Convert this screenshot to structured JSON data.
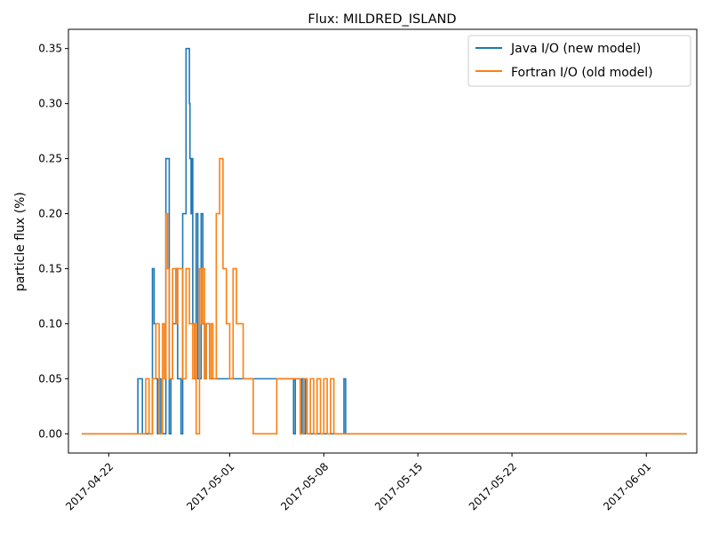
{
  "chart_data": {
    "type": "line",
    "title": "Flux: MILDRED_ISLAND",
    "xlabel": "",
    "ylabel": "particle flux (%)",
    "xlim": [
      "2017-04-19",
      "2017-06-04T18:00"
    ],
    "ylim": [
      -0.0175,
      0.3675
    ],
    "x_ticks": [
      "2017-04-22",
      "2017-05-01",
      "2017-05-08",
      "2017-05-15",
      "2017-05-22",
      "2017-06-01"
    ],
    "y_ticks": [
      0.0,
      0.05,
      0.1,
      0.15,
      0.2,
      0.25,
      0.3,
      0.35
    ],
    "y_tick_labels": [
      "0.00",
      "0.05",
      "0.10",
      "0.15",
      "0.20",
      "0.25",
      "0.30",
      "0.35"
    ],
    "grid": false,
    "legend": "top-right",
    "series": [
      {
        "name": "Java I/O (new model)",
        "color": "#1f77b4",
        "step": true,
        "x": [
          "2017-04-20T00:00",
          "2017-04-24T04:00",
          "2017-04-24T12:00",
          "2017-04-25T06:00",
          "2017-04-25T09:00",
          "2017-04-25T12:00",
          "2017-04-25T15:00",
          "2017-04-25T18:00",
          "2017-04-25T21:00",
          "2017-04-26T06:00",
          "2017-04-26T12:00",
          "2017-04-26T15:00",
          "2017-04-26T18:00",
          "2017-04-27T00:00",
          "2017-04-27T03:00",
          "2017-04-27T09:00",
          "2017-04-27T12:00",
          "2017-04-27T18:00",
          "2017-04-28T00:00",
          "2017-04-28T01:00",
          "2017-04-28T03:00",
          "2017-04-28T04:00",
          "2017-04-28T06:00",
          "2017-04-28T09:00",
          "2017-04-28T12:00",
          "2017-04-28T15:00",
          "2017-04-28T21:00",
          "2017-04-29T00:00",
          "2017-04-29T03:00",
          "2017-04-29T06:00",
          "2017-04-29T12:00",
          "2017-04-29T18:00",
          "2017-04-30T00:00",
          "2017-04-30T12:00",
          "2017-05-01T00:00",
          "2017-05-04T12:00",
          "2017-05-05T18:00",
          "2017-05-05T21:00",
          "2017-05-06T06:00",
          "2017-05-06T09:00",
          "2017-05-06T12:00",
          "2017-05-06T15:00",
          "2017-05-06T18:00",
          "2017-05-07T00:00",
          "2017-05-09T12:00",
          "2017-05-09T15:00",
          "2017-06-04T00:00"
        ],
        "y": [
          0.0,
          0.05,
          0.0,
          0.15,
          0.1,
          0.05,
          0.0,
          0.05,
          0.0,
          0.25,
          0.0,
          0.05,
          0.1,
          0.15,
          0.05,
          0.0,
          0.2,
          0.35,
          0.3,
          0.25,
          0.2,
          0.25,
          0.1,
          0.05,
          0.2,
          0.05,
          0.2,
          0.1,
          0.05,
          0.1,
          0.05,
          0.05,
          0.05,
          0.05,
          0.05,
          0.05,
          0.0,
          0.05,
          0.0,
          0.05,
          0.0,
          0.05,
          0.0,
          0.0,
          0.05,
          0.0,
          0.0
        ]
      },
      {
        "name": "Fortran I/O (old model)",
        "color": "#ff7f0e",
        "step": true,
        "x": [
          "2017-04-20T00:00",
          "2017-04-24T18:00",
          "2017-04-25T00:00",
          "2017-04-25T06:00",
          "2017-04-25T12:00",
          "2017-04-25T18:00",
          "2017-04-26T00:00",
          "2017-04-26T03:00",
          "2017-04-26T06:00",
          "2017-04-26T09:00",
          "2017-04-26T12:00",
          "2017-04-26T18:00",
          "2017-04-27T00:00",
          "2017-04-27T03:00",
          "2017-04-27T06:00",
          "2017-04-27T12:00",
          "2017-04-27T18:00",
          "2017-04-28T00:00",
          "2017-04-28T06:00",
          "2017-04-28T09:00",
          "2017-04-28T12:00",
          "2017-04-28T18:00",
          "2017-04-28T21:00",
          "2017-04-29T00:00",
          "2017-04-29T03:00",
          "2017-04-29T06:00",
          "2017-04-29T09:00",
          "2017-04-29T12:00",
          "2017-04-29T15:00",
          "2017-04-29T18:00",
          "2017-04-30T00:00",
          "2017-04-30T06:00",
          "2017-04-30T12:00",
          "2017-04-30T18:00",
          "2017-05-01T00:00",
          "2017-05-01T06:00",
          "2017-05-01T12:00",
          "2017-05-02T00:00",
          "2017-05-02T12:00",
          "2017-05-02T18:00",
          "2017-05-03T00:00",
          "2017-05-04T12:00",
          "2017-05-05T00:00",
          "2017-05-05T12:00",
          "2017-05-06T00:00",
          "2017-05-06T06:00",
          "2017-05-06T12:00",
          "2017-05-06T18:00",
          "2017-05-07T00:00",
          "2017-05-07T06:00",
          "2017-05-07T12:00",
          "2017-05-07T18:00",
          "2017-05-08T00:00",
          "2017-05-08T06:00",
          "2017-05-08T12:00",
          "2017-05-08T18:00",
          "2017-06-04T00:00"
        ],
        "y": [
          0.0,
          0.05,
          0.0,
          0.05,
          0.1,
          0.0,
          0.1,
          0.05,
          0.2,
          0.15,
          0.05,
          0.15,
          0.1,
          0.15,
          0.15,
          0.05,
          0.15,
          0.1,
          0.05,
          0.1,
          0.0,
          0.15,
          0.1,
          0.15,
          0.05,
          0.1,
          0.1,
          0.05,
          0.1,
          0.05,
          0.2,
          0.25,
          0.15,
          0.1,
          0.05,
          0.15,
          0.1,
          0.05,
          0.05,
          0.0,
          0.0,
          0.05,
          0.05,
          0.05,
          0.05,
          0.0,
          0.05,
          0.0,
          0.05,
          0.0,
          0.05,
          0.0,
          0.05,
          0.0,
          0.05,
          0.0,
          0.0
        ]
      }
    ]
  }
}
